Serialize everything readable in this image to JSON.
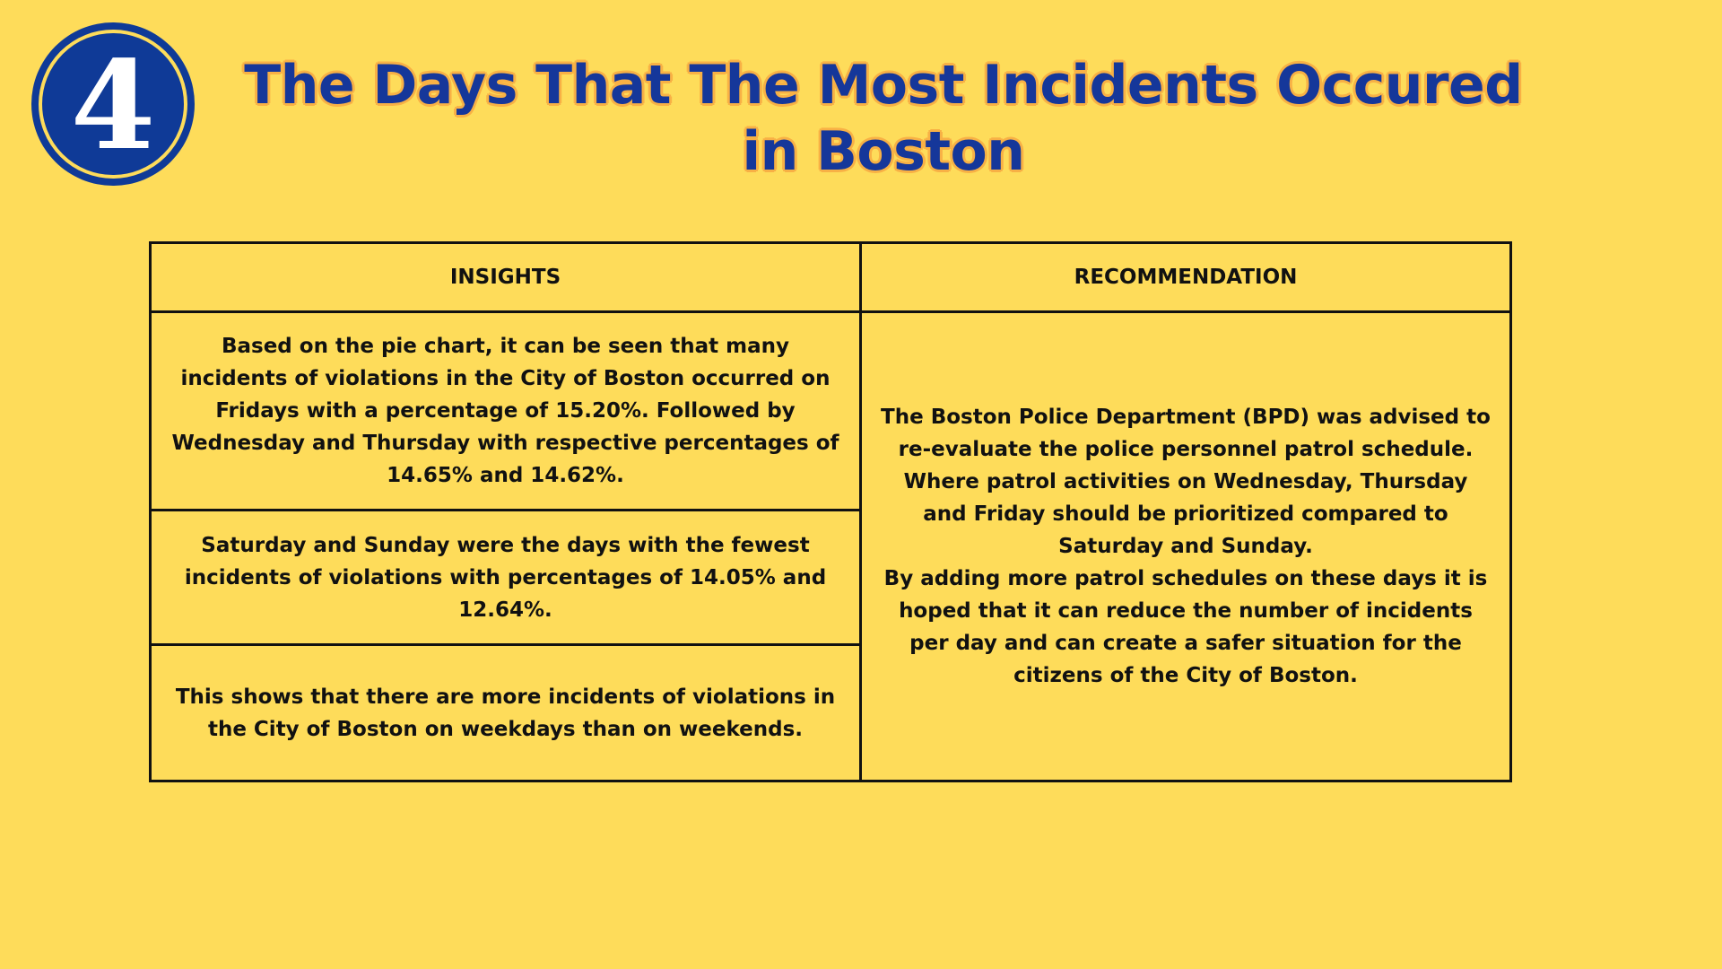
{
  "badge": {
    "number": "4"
  },
  "title": {
    "line1": "The Days That The Most Incidents Occured",
    "line2": "in Boston"
  },
  "table": {
    "headers": {
      "insights": "INSIGHTS",
      "recommendation": "RECOMMENDATION"
    },
    "insights": [
      "Based on the pie chart, it can be seen that many incidents of violations in the City of Boston occurred on Fridays with a percentage of 15.20%. Followed by Wednesday and Thursday with respective percentages of 14.65% and 14.62%.",
      "Saturday and Sunday were the days with the fewest incidents of violations with percentages of 14.05% and 12.64%.",
      "This shows that there are more incidents of violations in the City of Boston on weekdays than on weekends."
    ],
    "recommendation": {
      "paragraph1": "The Boston Police Department (BPD) was advised to re-evaluate the police personnel patrol schedule. Where patrol activities on Wednesday, Thursday and Friday should be prioritized compared to Saturday and Sunday.",
      "paragraph2": "By adding more patrol schedules on these days it is hoped that it can reduce the number of incidents per day and can create a safer situation for the citizens of the City of Boston."
    }
  },
  "colors": {
    "background": "#FEDC5A",
    "title_text": "#15379A",
    "title_outline": "#F8B145",
    "badge_fill": "#0F3A97",
    "table_border": "#111111"
  }
}
